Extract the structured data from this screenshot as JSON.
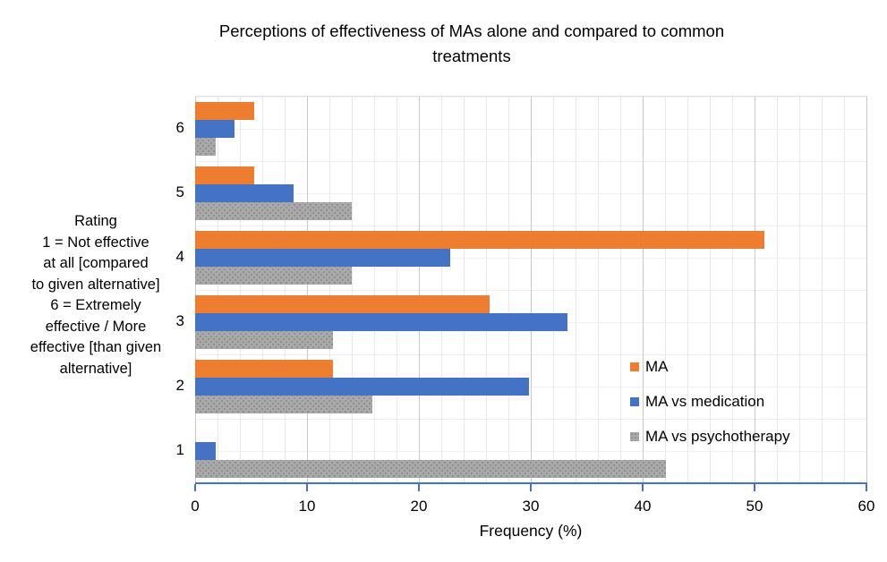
{
  "title": "Perceptions of effectiveness of MAs alone and compared to common treatments",
  "title_lines": [
    "Perceptions of effectiveness of MAs alone and compared to common",
    "treatments"
  ],
  "y_axis_label_lines": [
    "Rating",
    "1 = Not effective",
    "at all [compared",
    "to given alternative]",
    "6 = Extremely",
    "effective / More",
    "effective [than given",
    "alternative]"
  ],
  "x_axis": {
    "label": "Frequency (%)",
    "ticks": [
      0,
      10,
      20,
      30,
      40,
      50,
      60
    ],
    "min": 0,
    "max": 60
  },
  "colors": {
    "ma": "#ED7D31",
    "ma_vs_medication": "#4472C4",
    "ma_vs_psychotherapy": "#A9A9A9",
    "axis_line": "#4472C4"
  },
  "chart_data": {
    "type": "bar",
    "orientation": "horizontal",
    "title": "Perceptions of effectiveness of MAs alone and compared to common treatments",
    "xlabel": "Frequency (%)",
    "ylabel": "Rating  1 = Not effective at all [compared to given alternative]  6 = Extremely effective / More effective [than given alternative]",
    "xlim": [
      0,
      60
    ],
    "x_tick_step": 10,
    "grid": true,
    "legend_position": "inside-right",
    "categories": [
      "6",
      "5",
      "4",
      "3",
      "2",
      "1"
    ],
    "series": [
      {
        "name": "MA",
        "color": "#ED7D31",
        "pattern": "solid",
        "values": [
          5.3,
          5.3,
          50.9,
          26.3,
          12.3,
          0
        ]
      },
      {
        "name": "MA vs medication",
        "color": "#4472C4",
        "pattern": "solid",
        "values": [
          3.5,
          8.8,
          22.8,
          33.3,
          29.8,
          1.8
        ]
      },
      {
        "name": "MA vs psychotherapy",
        "color": "#A9A9A9",
        "pattern": "dots",
        "values": [
          1.8,
          14.0,
          14.0,
          12.3,
          15.8,
          42.1
        ]
      }
    ]
  }
}
